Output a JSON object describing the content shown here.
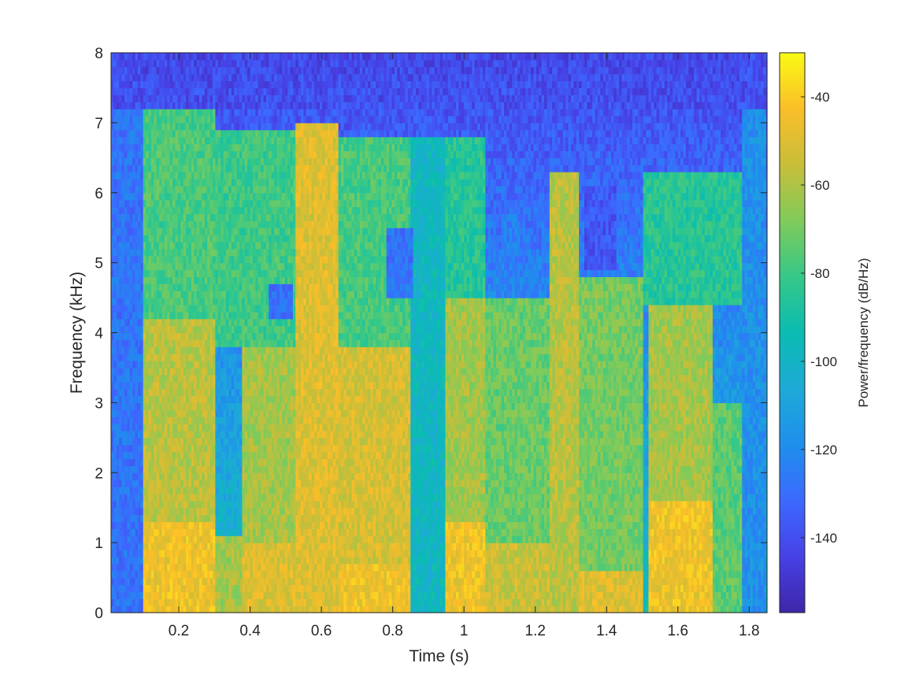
{
  "chart_data": {
    "type": "heatmap",
    "title": "",
    "xlabel": "Time (s)",
    "ylabel": "Frequency (kHz)",
    "colorbar_label": "Power/frequency (dB/Hz)",
    "xlim": [
      0.01,
      1.85
    ],
    "ylim": [
      0,
      8
    ],
    "clim": [
      -157,
      -30
    ],
    "x_ticks": [
      0.2,
      0.4,
      0.6,
      0.8,
      1,
      1.2,
      1.4,
      1.6,
      1.8
    ],
    "x_tick_labels": [
      "0.2",
      "0.4",
      "0.6",
      "0.8",
      "1",
      "1.2",
      "1.4",
      "1.6",
      "1.8"
    ],
    "y_ticks": [
      0,
      1,
      2,
      3,
      4,
      5,
      6,
      7,
      8
    ],
    "y_tick_labels": [
      "0",
      "1",
      "2",
      "3",
      "4",
      "5",
      "6",
      "7",
      "8"
    ],
    "colorbar_ticks": [
      -40,
      -60,
      -80,
      -100,
      -120,
      -140
    ],
    "colorbar_tick_labels": [
      "-40",
      "-60",
      "-80",
      "-100",
      "-120",
      "-140"
    ],
    "colormap": "parula",
    "grid": false,
    "time_bin_s": 0.0075,
    "freq_bin_khz": 0.1,
    "segments": [
      {
        "t": [
          0.01,
          0.1
        ],
        "f": [
          0,
          8
        ],
        "db": -128
      },
      {
        "t": [
          0.1,
          0.3
        ],
        "f": [
          0,
          1.3
        ],
        "db": -45
      },
      {
        "t": [
          0.1,
          0.3
        ],
        "f": [
          1.3,
          4.2
        ],
        "db": -58
      },
      {
        "t": [
          0.1,
          0.3
        ],
        "f": [
          4.2,
          7.2
        ],
        "db": -78
      },
      {
        "t": [
          0.3,
          0.38
        ],
        "f": [
          0,
          1.1
        ],
        "db": -62
      },
      {
        "t": [
          0.38,
          0.53
        ],
        "f": [
          0,
          1.0
        ],
        "db": -50
      },
      {
        "t": [
          0.38,
          0.53
        ],
        "f": [
          1.0,
          3.8
        ],
        "db": -62
      },
      {
        "t": [
          0.3,
          0.53
        ],
        "f": [
          3.8,
          6.9
        ],
        "db": -80
      },
      {
        "t": [
          0.53,
          0.65
        ],
        "f": [
          0,
          7.0
        ],
        "db": -50
      },
      {
        "t": [
          0.65,
          0.85
        ],
        "f": [
          0,
          0.7
        ],
        "db": -45
      },
      {
        "t": [
          0.65,
          0.85
        ],
        "f": [
          0.7,
          3.8
        ],
        "db": -52
      },
      {
        "t": [
          0.65,
          0.85
        ],
        "f": [
          3.8,
          6.8
        ],
        "db": -78
      },
      {
        "t": [
          0.85,
          0.95
        ],
        "f": [
          0,
          6.8
        ],
        "db": -98
      },
      {
        "t": [
          0.95,
          1.06
        ],
        "f": [
          0,
          1.3
        ],
        "db": -45
      },
      {
        "t": [
          0.95,
          1.06
        ],
        "f": [
          1.3,
          4.5
        ],
        "db": -62
      },
      {
        "t": [
          0.95,
          1.06
        ],
        "f": [
          4.5,
          6.8
        ],
        "db": -85
      },
      {
        "t": [
          1.06,
          1.24
        ],
        "f": [
          0,
          1.0
        ],
        "db": -55
      },
      {
        "t": [
          1.06,
          1.24
        ],
        "f": [
          1.0,
          4.5
        ],
        "db": -72
      },
      {
        "t": [
          1.24,
          1.32
        ],
        "f": [
          0,
          6.3
        ],
        "db": -58
      },
      {
        "t": [
          1.32,
          1.5
        ],
        "f": [
          0,
          0.6
        ],
        "db": -50
      },
      {
        "t": [
          1.32,
          1.5
        ],
        "f": [
          0.6,
          4.8
        ],
        "db": -70
      },
      {
        "t": [
          1.52,
          1.7
        ],
        "f": [
          0,
          1.6
        ],
        "db": -45
      },
      {
        "t": [
          1.52,
          1.7
        ],
        "f": [
          1.6,
          4.4
        ],
        "db": -62
      },
      {
        "t": [
          1.7,
          1.78
        ],
        "f": [
          0,
          3.0
        ],
        "db": -75
      },
      {
        "t": [
          1.5,
          1.78
        ],
        "f": [
          4.4,
          6.3
        ],
        "db": -85
      },
      {
        "t": [
          1.78,
          1.85
        ],
        "f": [
          0,
          8
        ],
        "db": -118
      },
      {
        "t": [
          0.45,
          0.52
        ],
        "f": [
          4.2,
          4.7
        ],
        "db": -130
      },
      {
        "t": [
          0.78,
          0.86
        ],
        "f": [
          4.5,
          5.5
        ],
        "db": -128
      },
      {
        "t": [
          1.11,
          1.16
        ],
        "f": [
          4.7,
          5.7
        ],
        "db": -125
      },
      {
        "t": [
          1.34,
          1.43
        ],
        "f": [
          4.9,
          6.1
        ],
        "db": -138
      }
    ]
  }
}
